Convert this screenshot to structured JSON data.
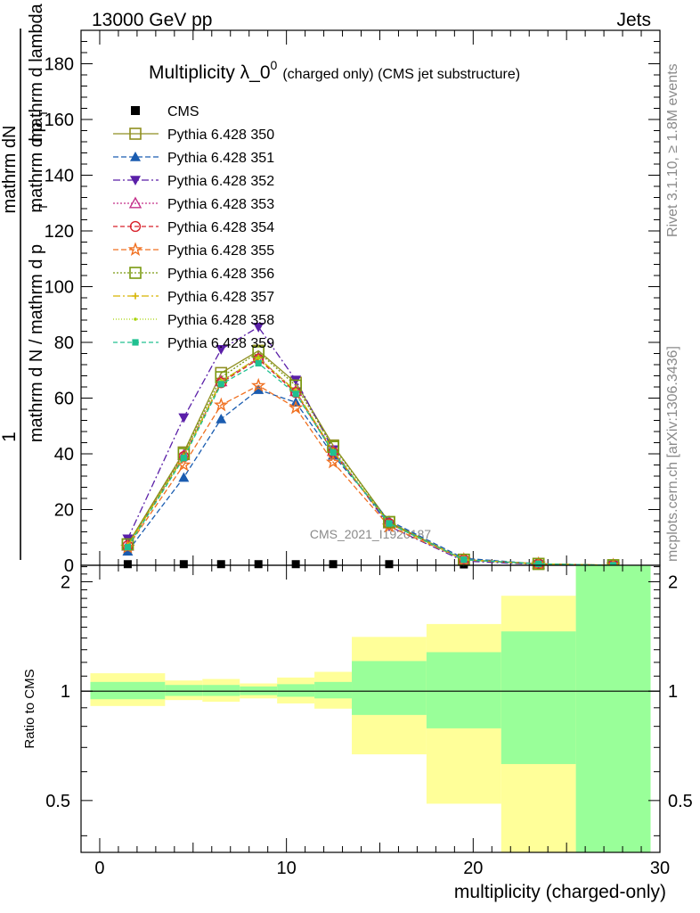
{
  "header": {
    "left": "13000 GeV pp",
    "right": "Jets"
  },
  "side_labels": {
    "top": "Rivet 3.1.10, ≥ 1.8M events",
    "bottom": "mcplots.cern.ch [arXiv:1306.3436]"
  },
  "chart_data": [
    {
      "type": "line",
      "title_main": "Multiplicity λ_0",
      "title_sup": "0",
      "title_rest": "(charged only) (CMS jet substructure)",
      "watermark": "CMS_2021_I1920187",
      "ylabel_numerator": "mathrm dN",
      "ylabel_denominator": "mathrm d N / mathrm d p",
      "ylabel_one": "1",
      "ylim": [
        0,
        192
      ],
      "yticks": [
        0,
        20,
        40,
        60,
        80,
        100,
        120,
        140,
        160,
        180
      ],
      "xlim": [
        -1,
        30
      ],
      "x": [
        1.5,
        4.5,
        6.5,
        8.5,
        10.5,
        12.5,
        15.5,
        19.5,
        23.5,
        27.5
      ],
      "series": [
        {
          "name": "CMS",
          "color": "#000000",
          "marker": "square-filled",
          "dash": "none",
          "values": [
            0.4,
            0.4,
            0.4,
            0.4,
            0.4,
            0.4,
            0.4,
            0.3,
            0.2,
            0.1
          ]
        },
        {
          "name": "Pythia 6.428 350",
          "color": "#8f8f20",
          "marker": "square-open",
          "dash": "solid",
          "values": [
            7.5,
            40.5,
            69,
            77,
            65.5,
            43,
            15.5,
            2,
            0.5,
            0
          ]
        },
        {
          "name": "Pythia 6.428 351",
          "color": "#1a5cb0",
          "marker": "triangle-up-filled",
          "dash": "6,3",
          "values": [
            5,
            31.5,
            52.5,
            63,
            58.5,
            39.5,
            16,
            2.5,
            0.5,
            0
          ]
        },
        {
          "name": "Pythia 6.428 352",
          "color": "#5a1fa8",
          "marker": "triangle-down-filled",
          "dash": "8,3,2,3",
          "values": [
            9.5,
            53,
            77.5,
            85.5,
            66.5,
            41.5,
            14,
            1.5,
            0.3,
            0
          ]
        },
        {
          "name": "Pythia 6.428 353",
          "color": "#c4308a",
          "marker": "triangle-up-open",
          "dash": "2,2",
          "values": [
            7,
            39.5,
            66,
            74.5,
            62.5,
            41,
            15,
            2,
            0.5,
            0
          ]
        },
        {
          "name": "Pythia 6.428 354",
          "color": "#d8202a",
          "marker": "circle-open",
          "dash": "5,3",
          "values": [
            7,
            39,
            65.5,
            74,
            62,
            40.5,
            15,
            2,
            0.5,
            0
          ]
        },
        {
          "name": "Pythia 6.428 355",
          "color": "#f07020",
          "marker": "star-open",
          "dash": "6,3",
          "values": [
            6.5,
            36,
            57.5,
            64.5,
            56.5,
            37,
            14,
            2,
            0.5,
            0
          ]
        },
        {
          "name": "Pythia 6.428 356",
          "color": "#7a9a10",
          "marker": "square-open",
          "dash": "2,2",
          "values": [
            7.5,
            40,
            67.5,
            76.5,
            64.5,
            42.5,
            15.5,
            2,
            0.5,
            0
          ]
        },
        {
          "name": "Pythia 6.428 357",
          "color": "#d6b400",
          "marker": "cross",
          "dash": "8,3,2,3",
          "values": [
            7,
            39,
            66,
            74.5,
            62.5,
            41,
            15,
            2,
            0.5,
            0
          ]
        },
        {
          "name": "Pythia 6.428 358",
          "color": "#a8d40a",
          "marker": "dot",
          "dash": "1,2",
          "values": [
            7,
            39,
            66,
            74.5,
            62.5,
            41,
            15,
            2,
            0.5,
            0
          ]
        },
        {
          "name": "Pythia 6.428 359",
          "color": "#20c090",
          "marker": "square-filled-small",
          "dash": "5,3",
          "values": [
            6.5,
            38.5,
            65,
            72.5,
            61.5,
            40.5,
            15,
            2,
            0.5,
            0
          ]
        }
      ]
    },
    {
      "type": "area",
      "ylabel": "Ratio to CMS",
      "xlabel": "multiplicity (charged-only)",
      "ylim": [
        0.36,
        2.22
      ],
      "log_y": true,
      "xlim": [
        -1,
        30
      ],
      "xticks": [
        0,
        10,
        20,
        30
      ],
      "yticks_major": [
        0.5,
        1,
        2
      ],
      "reference": 1,
      "stat_color": "#99ff99",
      "total_color": "#ffff99",
      "bins": [
        {
          "lo": -0.5,
          "hi": 3.5,
          "stat": [
            0.95,
            1.06
          ],
          "total": [
            0.91,
            1.12
          ]
        },
        {
          "lo": 3.5,
          "hi": 5.5,
          "stat": [
            0.97,
            1.04
          ],
          "total": [
            0.945,
            1.07
          ]
        },
        {
          "lo": 5.5,
          "hi": 7.5,
          "stat": [
            0.97,
            1.04
          ],
          "total": [
            0.935,
            1.08
          ]
        },
        {
          "lo": 7.5,
          "hi": 9.5,
          "stat": [
            0.975,
            1.03
          ],
          "total": [
            0.955,
            1.05
          ]
        },
        {
          "lo": 9.5,
          "hi": 11.5,
          "stat": [
            0.965,
            1.045
          ],
          "total": [
            0.925,
            1.09
          ]
        },
        {
          "lo": 11.5,
          "hi": 13.5,
          "stat": [
            0.955,
            1.06
          ],
          "total": [
            0.895,
            1.13
          ]
        },
        {
          "lo": 13.5,
          "hi": 17.5,
          "stat": [
            0.86,
            1.21
          ],
          "total": [
            0.67,
            1.41
          ]
        },
        {
          "lo": 17.5,
          "hi": 21.5,
          "stat": [
            0.79,
            1.28
          ],
          "total": [
            0.49,
            1.53
          ]
        },
        {
          "lo": 21.5,
          "hi": 25.5,
          "stat": [
            0.63,
            1.46
          ],
          "total": [
            0.36,
            1.83
          ]
        },
        {
          "lo": 25.5,
          "hi": 29.5,
          "stat": [
            0.36,
            2.22
          ],
          "total": [
            0.36,
            2.22
          ]
        }
      ]
    }
  ]
}
